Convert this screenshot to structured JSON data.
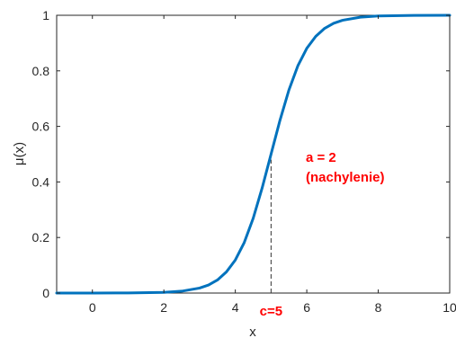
{
  "chart_data": {
    "type": "line",
    "title": "",
    "xlabel": "x",
    "ylabel": "μ(x)",
    "xlim": [
      -1,
      10
    ],
    "ylim": [
      0,
      1
    ],
    "xticks": [
      "0",
      "2",
      "4",
      "6",
      "8",
      "10"
    ],
    "xtick_values": [
      0,
      2,
      4,
      6,
      8,
      10
    ],
    "yticks": [
      "0",
      "0.2",
      "0.4",
      "0.6",
      "0.8",
      "1"
    ],
    "ytick_values": [
      0,
      0.2,
      0.4,
      0.6,
      0.8,
      1
    ],
    "grid": false,
    "series": [
      {
        "color": "#0072bd",
        "x": [
          -1,
          0,
          1,
          2,
          2.5,
          3,
          3.25,
          3.5,
          3.75,
          4,
          4.25,
          4.5,
          4.75,
          5,
          5.25,
          5.5,
          5.75,
          6,
          6.25,
          6.5,
          6.75,
          7,
          7.5,
          8,
          9,
          10
        ],
        "y": [
          0.0,
          0.0,
          0.0005,
          0.0025,
          0.0067,
          0.018,
          0.029,
          0.047,
          0.076,
          0.119,
          0.182,
          0.269,
          0.378,
          0.5,
          0.622,
          0.731,
          0.818,
          0.881,
          0.924,
          0.953,
          0.971,
          0.982,
          0.993,
          0.9975,
          0.9997,
          1.0
        ]
      }
    ],
    "annotations": [
      {
        "text": "a = 2",
        "color": "#ff0000"
      },
      {
        "text": "(nachylenie)",
        "color": "#ff0000"
      },
      {
        "text": "c=5",
        "color": "#ff0000",
        "x": 5
      }
    ],
    "guide_line": {
      "x": 5,
      "y_top": 0.48,
      "style": "dashed"
    }
  }
}
